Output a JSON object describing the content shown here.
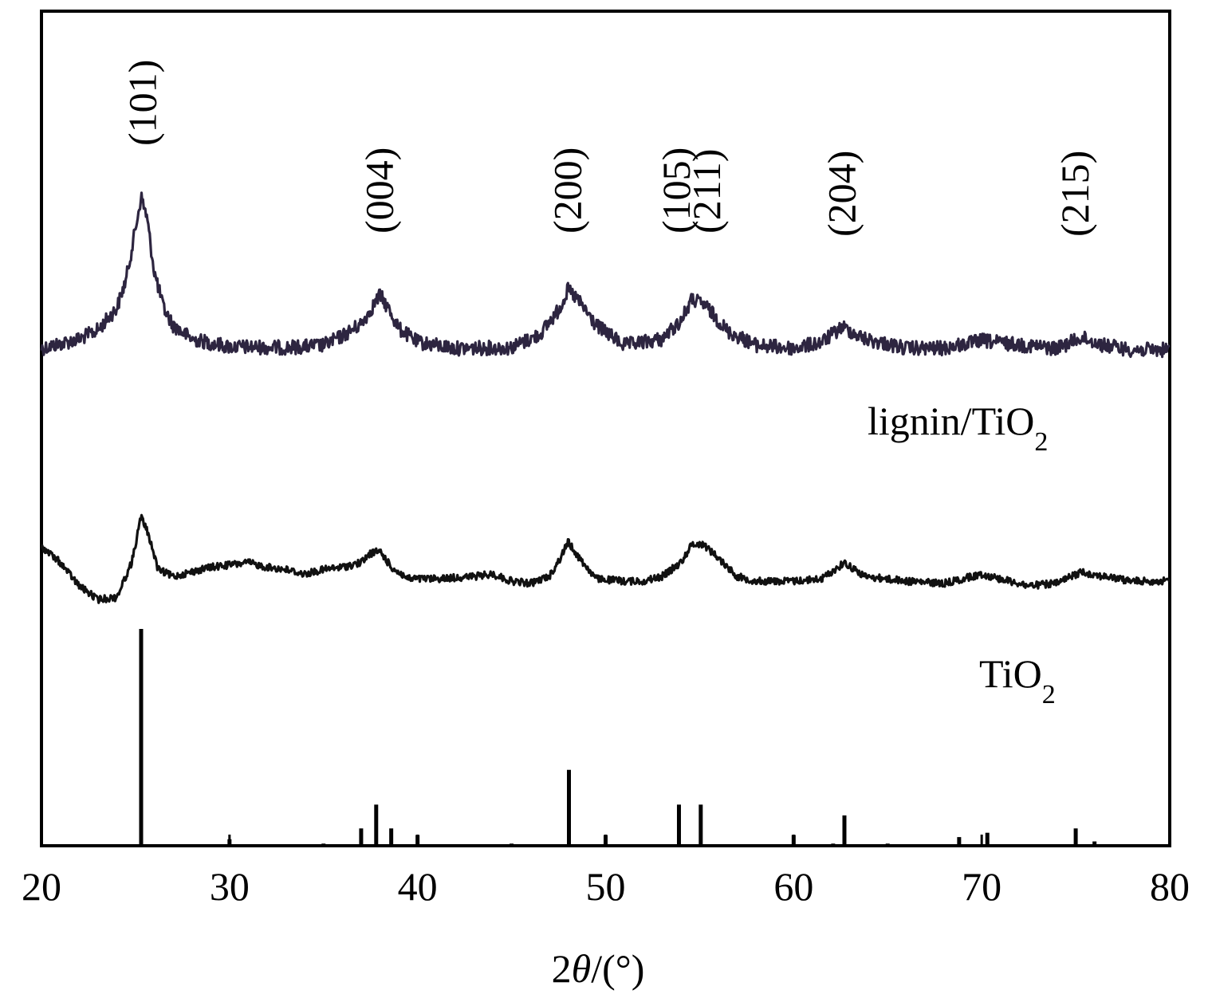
{
  "chart_data": {
    "type": "line",
    "xlabel": "2θ/(°)",
    "xlabel_prefix": "2",
    "xlabel_symbol": "θ",
    "xlabel_suffix": "/(°)",
    "xlim": [
      20,
      80
    ],
    "xticks": [
      20,
      30,
      40,
      50,
      60,
      70,
      80
    ],
    "ylabel": "",
    "y_ticks_shown": false,
    "grid": false,
    "legend": "none",
    "series": [
      {
        "name": "lignin/TiO2",
        "label_main": "lignin/TiO",
        "label_sub": "2",
        "color": "#2d2540",
        "baseline": 0.6,
        "x": [
          20,
          21,
          22,
          23,
          24,
          24.5,
          25,
          25.3,
          25.6,
          26,
          26.5,
          27,
          28,
          30,
          33,
          35,
          36,
          37,
          37.5,
          38,
          38.5,
          39,
          40,
          42,
          45,
          46.5,
          47.5,
          48,
          48.5,
          49.5,
          51,
          53,
          54,
          54.6,
          55.3,
          56.5,
          58,
          60,
          61.5,
          62.6,
          63.8,
          66,
          68,
          70,
          71.5,
          74,
          75.3,
          76.5,
          78,
          80
        ],
        "y": [
          0.0,
          0.3,
          0.6,
          1.2,
          2.6,
          4.5,
          7.8,
          9.9,
          8.6,
          5.0,
          2.6,
          1.5,
          0.6,
          0.1,
          0.05,
          0.2,
          0.8,
          1.6,
          2.5,
          3.5,
          2.5,
          1.3,
          0.4,
          0.0,
          0.05,
          0.9,
          2.5,
          3.8,
          3.2,
          1.5,
          0.2,
          0.6,
          1.8,
          3.2,
          2.8,
          1.1,
          0.2,
          0.0,
          0.4,
          1.4,
          0.6,
          0.0,
          0.0,
          0.5,
          0.3,
          0.0,
          0.7,
          0.2,
          -0.1,
          -0.1
        ]
      },
      {
        "name": "TiO2",
        "label_main": "TiO",
        "label_sub": "2",
        "color": "#111111",
        "baseline": 0.3,
        "x": [
          20,
          21,
          22,
          23,
          24,
          24.8,
          25.3,
          25.7,
          26.2,
          27,
          28,
          29,
          30,
          31,
          32,
          33,
          34,
          35,
          36,
          37,
          37.5,
          38,
          38.6,
          39.5,
          41,
          43,
          44,
          45,
          46,
          47,
          47.6,
          48,
          48.6,
          49.5,
          51,
          52,
          53,
          54,
          54.6,
          55.2,
          56,
          57,
          58,
          60,
          61.5,
          62.7,
          63.8,
          66,
          68,
          70,
          71,
          72.5,
          74,
          75.3,
          76.5,
          78,
          80
        ],
        "y": [
          1.5,
          0.8,
          -0.2,
          -0.8,
          -0.7,
          0.8,
          2.8,
          2.0,
          0.5,
          0.2,
          0.4,
          0.6,
          0.7,
          0.8,
          0.6,
          0.5,
          0.3,
          0.5,
          0.6,
          0.8,
          1.2,
          1.3,
          0.6,
          0.1,
          0.1,
          0.2,
          0.3,
          0.0,
          -0.1,
          0.2,
          1.0,
          1.7,
          1.0,
          0.1,
          0.0,
          0.0,
          0.2,
          0.8,
          1.6,
          1.6,
          1.0,
          0.2,
          0.0,
          0.0,
          0.1,
          0.8,
          0.2,
          0.0,
          -0.1,
          0.3,
          0.1,
          -0.2,
          -0.1,
          0.4,
          0.2,
          0.0,
          0.0
        ]
      }
    ],
    "reference_pattern": {
      "name": "TiO2 standard",
      "x": [
        25.3,
        30.0,
        35.0,
        37.0,
        37.8,
        38.6,
        40.0,
        45.0,
        48.05,
        50.0,
        53.9,
        55.06,
        60.0,
        62.1,
        62.7,
        65.0,
        68.8,
        70.3,
        75.0,
        76.0
      ],
      "intensity": [
        100,
        3,
        1,
        8,
        19,
        8,
        5,
        1,
        35,
        5,
        19,
        19,
        5,
        1,
        14,
        1,
        4,
        6,
        8,
        2
      ]
    },
    "annotations": [
      {
        "text": "(101)",
        "x": 25.4
      },
      {
        "text": "(004)",
        "x": 38.0
      },
      {
        "text": "(200)",
        "x": 48.0
      },
      {
        "text": "(105)",
        "x": 53.8
      },
      {
        "text": "(211)",
        "x": 55.4
      },
      {
        "text": "(204)",
        "x": 62.6
      },
      {
        "text": "(215)",
        "x": 75.0
      }
    ]
  }
}
